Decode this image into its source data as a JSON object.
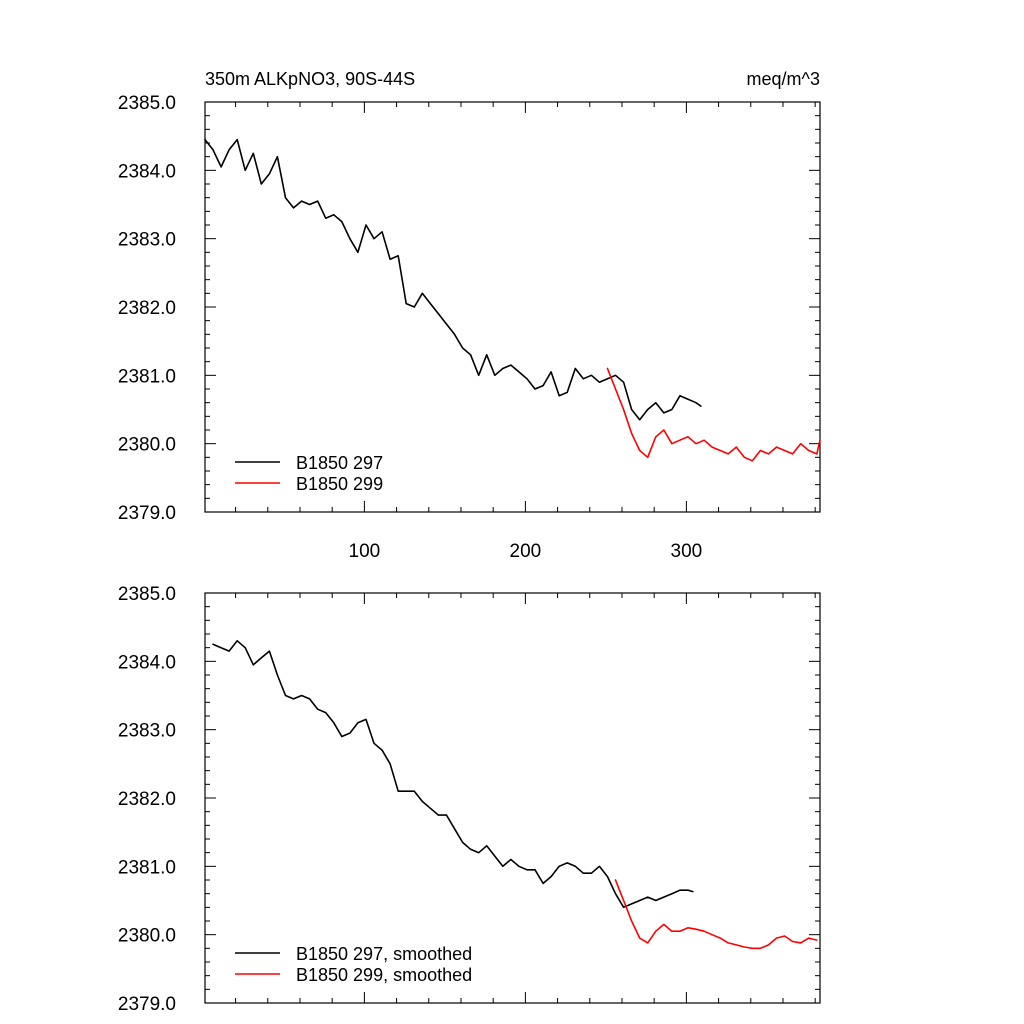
{
  "chart_data": [
    {
      "type": "line",
      "title": "350m ALKpNO3, 90S-44S",
      "units": "meq/m^3",
      "xlabel": "",
      "ylabel": "",
      "xlim": [
        1,
        383
      ],
      "ylim": [
        2379.0,
        2385.0
      ],
      "xticks": [
        100,
        200,
        300
      ],
      "xtick_labels": [
        "100",
        "200",
        "300"
      ],
      "yticks": [
        2379.0,
        2380.0,
        2381.0,
        2382.0,
        2383.0,
        2384.0,
        2385.0
      ],
      "ytick_labels": [
        "2379.0",
        "2380.0",
        "2381.0",
        "2382.0",
        "2383.0",
        "2384.0",
        "2385.0"
      ],
      "legend_position": "bottom-left",
      "series": [
        {
          "name": "B1850 297",
          "color": "#000000",
          "x": [
            1,
            6,
            11,
            16,
            21,
            26,
            31,
            36,
            41,
            46,
            51,
            56,
            61,
            66,
            71,
            76,
            81,
            86,
            91,
            96,
            101,
            106,
            111,
            116,
            121,
            126,
            131,
            136,
            141,
            146,
            151,
            156,
            161,
            166,
            171,
            176,
            181,
            186,
            191,
            196,
            201,
            206,
            211,
            216,
            221,
            226,
            231,
            236,
            241,
            246,
            251,
            256,
            261,
            266,
            271,
            276,
            281,
            286,
            291,
            296,
            301,
            306,
            309
          ],
          "values": [
            2384.45,
            2384.3,
            2384.05,
            2384.3,
            2384.45,
            2384.0,
            2384.25,
            2383.8,
            2383.95,
            2384.2,
            2383.6,
            2383.45,
            2383.55,
            2383.5,
            2383.55,
            2383.3,
            2383.35,
            2383.25,
            2383.0,
            2382.8,
            2383.2,
            2383.0,
            2383.1,
            2382.7,
            2382.75,
            2382.05,
            2382.0,
            2382.2,
            2382.05,
            2381.9,
            2381.75,
            2381.6,
            2381.4,
            2381.3,
            2381.0,
            2381.3,
            2381.0,
            2381.1,
            2381.15,
            2381.05,
            2380.95,
            2380.8,
            2380.85,
            2381.05,
            2380.7,
            2380.75,
            2381.1,
            2380.95,
            2381.0,
            2380.9,
            2380.95,
            2381.0,
            2380.9,
            2380.5,
            2380.35,
            2380.5,
            2380.6,
            2380.45,
            2380.5,
            2380.7,
            2380.65,
            2380.6,
            2380.55
          ]
        },
        {
          "name": "B1850 299",
          "color": "#ff0000",
          "x": [
            251,
            256,
            261,
            266,
            271,
            276,
            281,
            286,
            291,
            296,
            301,
            306,
            311,
            316,
            321,
            326,
            331,
            336,
            341,
            346,
            351,
            356,
            361,
            366,
            371,
            376,
            381,
            383
          ],
          "values": [
            2381.1,
            2380.8,
            2380.5,
            2380.15,
            2379.9,
            2379.8,
            2380.1,
            2380.2,
            2380.0,
            2380.05,
            2380.1,
            2380.0,
            2380.05,
            2379.95,
            2379.9,
            2379.85,
            2379.95,
            2379.8,
            2379.75,
            2379.9,
            2379.85,
            2379.95,
            2379.9,
            2379.85,
            2380.0,
            2379.9,
            2379.85,
            2380.05
          ]
        }
      ]
    },
    {
      "type": "line",
      "title": "",
      "xlabel": "",
      "ylabel": "",
      "xlim": [
        1,
        383
      ],
      "ylim": [
        2379.0,
        2385.0
      ],
      "xticks": [
        100,
        200,
        300
      ],
      "xtick_labels": [],
      "yticks": [
        2379.0,
        2380.0,
        2381.0,
        2382.0,
        2383.0,
        2384.0,
        2385.0
      ],
      "ytick_labels": [
        "2379.0",
        "2380.0",
        "2381.0",
        "2382.0",
        "2383.0",
        "2384.0",
        "2385.0"
      ],
      "legend_position": "bottom-left",
      "series": [
        {
          "name": "B1850 297, smoothed",
          "color": "#000000",
          "x": [
            6,
            11,
            16,
            21,
            26,
            31,
            36,
            41,
            46,
            51,
            56,
            61,
            66,
            71,
            76,
            81,
            86,
            91,
            96,
            101,
            106,
            111,
            116,
            121,
            126,
            131,
            136,
            141,
            146,
            151,
            156,
            161,
            166,
            171,
            176,
            181,
            186,
            191,
            196,
            201,
            206,
            211,
            216,
            221,
            226,
            231,
            236,
            241,
            246,
            251,
            256,
            261,
            266,
            271,
            276,
            281,
            286,
            291,
            296,
            301,
            304
          ],
          "values": [
            2384.25,
            2384.2,
            2384.15,
            2384.3,
            2384.2,
            2383.95,
            2384.05,
            2384.15,
            2383.8,
            2383.5,
            2383.45,
            2383.5,
            2383.45,
            2383.3,
            2383.25,
            2383.1,
            2382.9,
            2382.95,
            2383.1,
            2383.15,
            2382.8,
            2382.7,
            2382.5,
            2382.1,
            2382.1,
            2382.1,
            2381.95,
            2381.85,
            2381.75,
            2381.75,
            2381.55,
            2381.35,
            2381.25,
            2381.2,
            2381.3,
            2381.15,
            2381.0,
            2381.1,
            2381.0,
            2380.95,
            2380.95,
            2380.75,
            2380.85,
            2381.0,
            2381.05,
            2381.0,
            2380.9,
            2380.9,
            2381.0,
            2380.85,
            2380.6,
            2380.4,
            2380.45,
            2380.5,
            2380.55,
            2380.5,
            2380.55,
            2380.6,
            2380.65,
            2380.65,
            2380.63
          ]
        },
        {
          "name": "B1850 299, smoothed",
          "color": "#ff0000",
          "x": [
            256,
            261,
            266,
            271,
            276,
            281,
            286,
            291,
            296,
            301,
            306,
            311,
            316,
            321,
            326,
            331,
            336,
            341,
            346,
            351,
            356,
            361,
            366,
            371,
            376,
            381
          ],
          "values": [
            2380.8,
            2380.5,
            2380.2,
            2379.95,
            2379.88,
            2380.05,
            2380.15,
            2380.05,
            2380.05,
            2380.1,
            2380.08,
            2380.05,
            2380.0,
            2379.95,
            2379.88,
            2379.85,
            2379.82,
            2379.8,
            2379.8,
            2379.85,
            2379.95,
            2379.98,
            2379.9,
            2379.88,
            2379.95,
            2379.92
          ]
        }
      ]
    }
  ]
}
